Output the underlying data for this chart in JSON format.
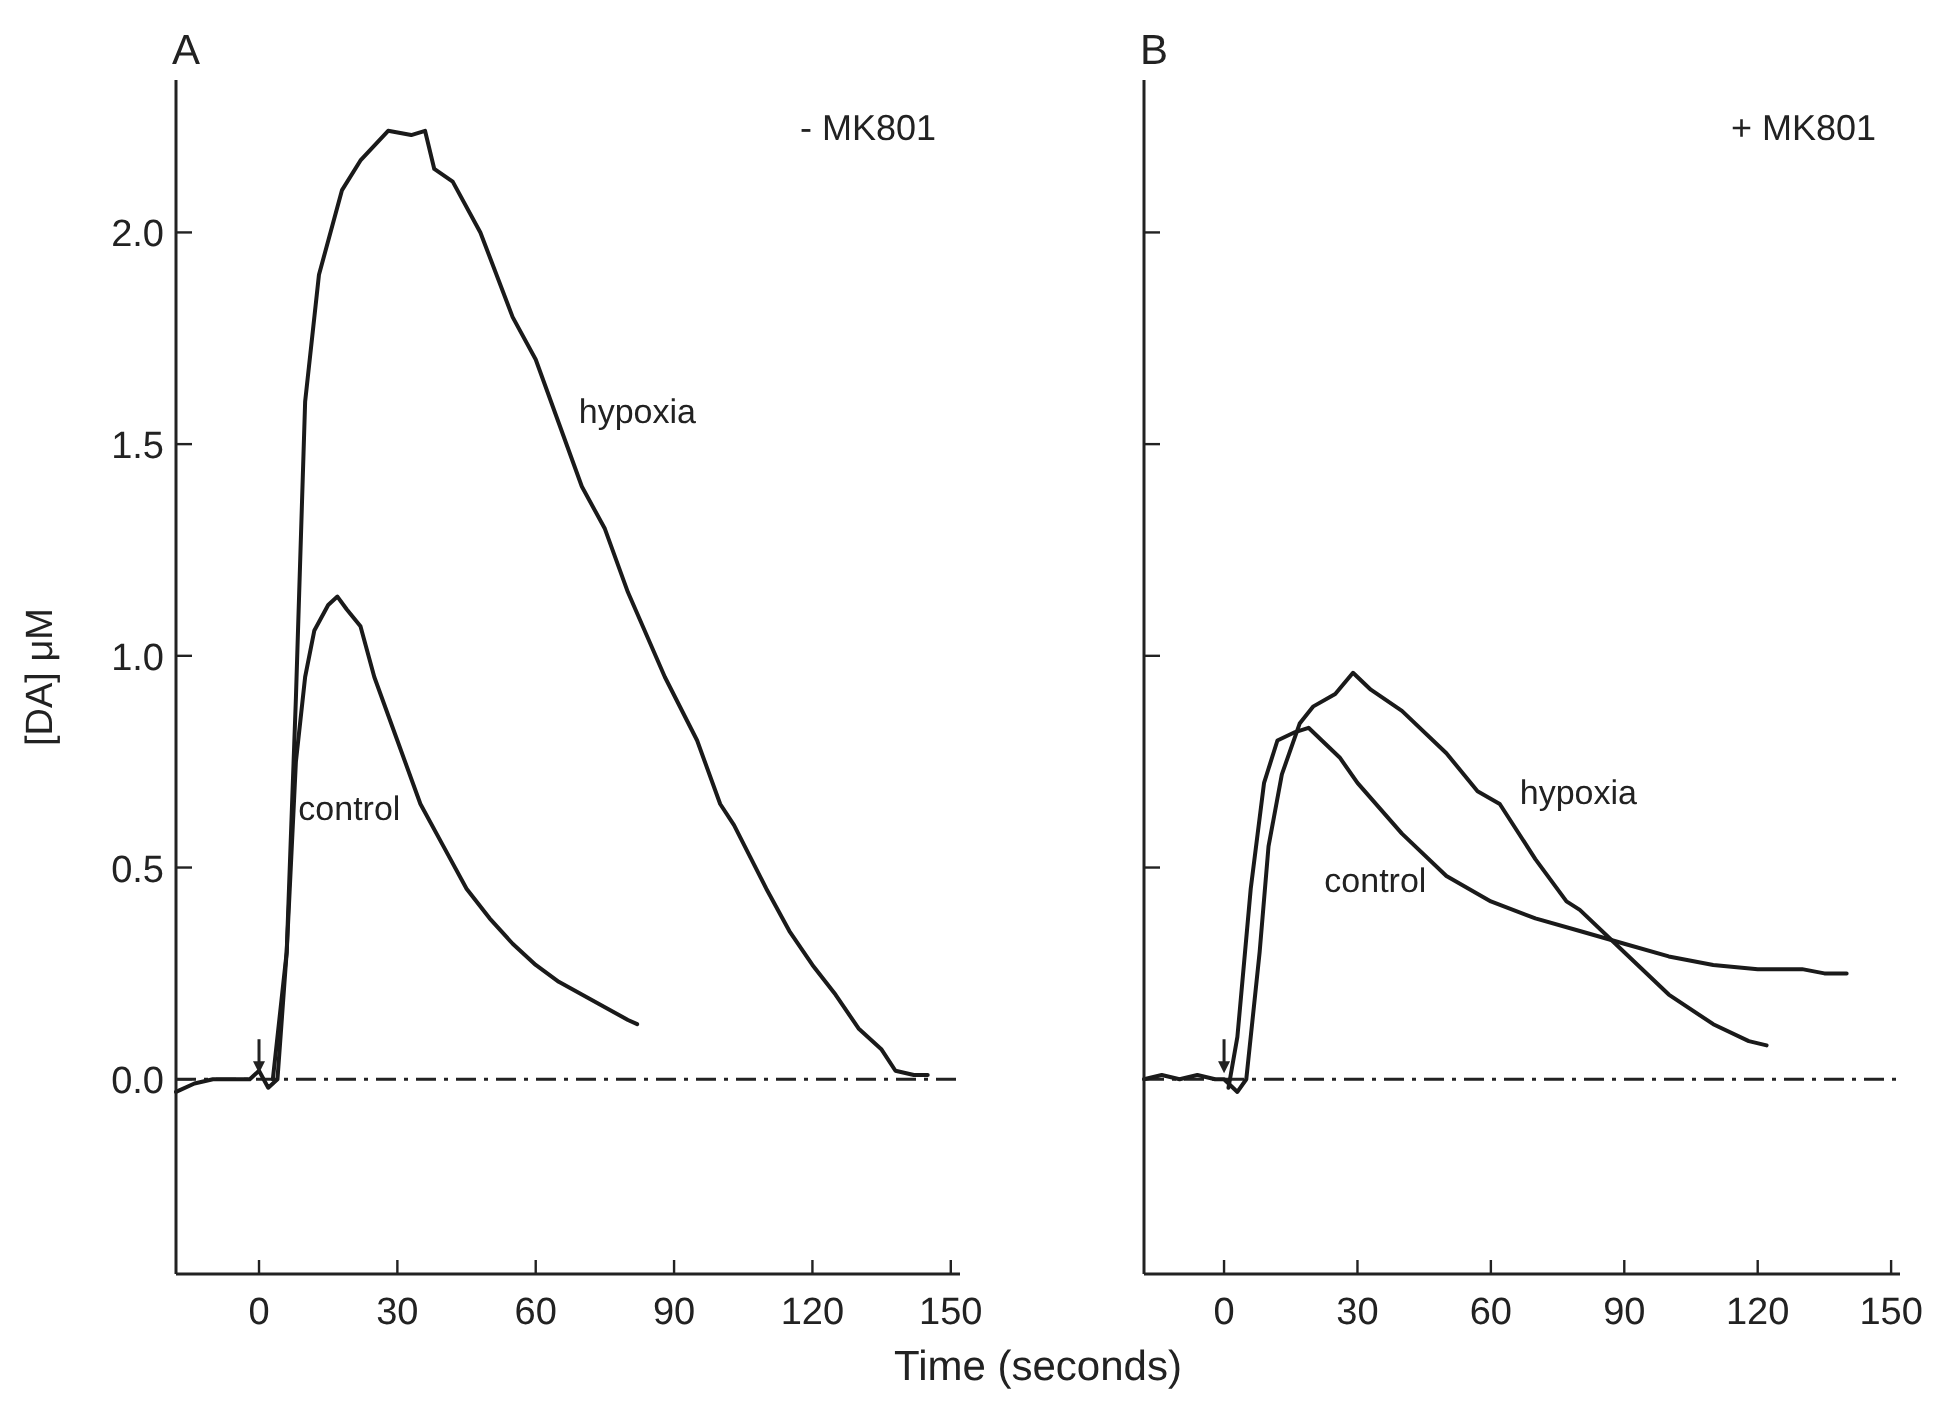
{
  "chart_data": [
    {
      "type": "line",
      "title": "A",
      "xlabel": "Time (seconds)",
      "ylabel": "[DA] μM",
      "annotations": [
        "- MK801"
      ],
      "xlim": [
        -18,
        152
      ],
      "ylim": [
        -0.46,
        2.36
      ],
      "xticks": [
        0,
        30,
        60,
        90,
        120,
        150
      ],
      "yticks": [
        {
          "value": 0,
          "label": "0.0"
        },
        0.5,
        {
          "value": 1,
          "label": "1.0"
        },
        1.5,
        {
          "value": 2,
          "label": "2.0"
        }
      ],
      "line_style": "solid",
      "ref_lines": [
        {
          "axis": "y",
          "value": 0,
          "line_style": "dashdot"
        }
      ],
      "series": [
        {
          "name": "control",
          "color": "#1a1a1a",
          "x": [
            3,
            6,
            8,
            10,
            12,
            15,
            17,
            19,
            22,
            25,
            30,
            35,
            40,
            45,
            50,
            55,
            60,
            65,
            70,
            75,
            80,
            82
          ],
          "values": [
            0,
            0.3,
            0.75,
            0.95,
            1.06,
            1.12,
            1.14,
            1.11,
            1.07,
            0.95,
            0.8,
            0.65,
            0.55,
            0.45,
            0.38,
            0.32,
            0.27,
            0.23,
            0.2,
            0.17,
            0.14,
            0.13
          ]
        },
        {
          "name": "hypoxia",
          "color": "#1a1a1a",
          "x": [
            -18,
            -14,
            -10,
            -6,
            -2,
            0,
            2,
            4,
            6,
            8,
            10,
            13,
            18,
            22,
            28,
            33,
            36,
            38,
            42,
            48,
            55,
            60,
            65,
            70,
            75,
            80,
            88,
            95,
            100,
            103,
            110,
            115,
            120,
            125,
            130,
            135,
            138,
            142,
            145
          ],
          "values": [
            -0.03,
            -0.01,
            0,
            0,
            0,
            0.02,
            -0.02,
            0,
            0.3,
            0.9,
            1.6,
            1.9,
            2.1,
            2.17,
            2.24,
            2.23,
            2.24,
            2.15,
            2.12,
            2,
            1.8,
            1.7,
            1.55,
            1.4,
            1.3,
            1.15,
            0.95,
            0.8,
            0.65,
            0.6,
            0.45,
            0.35,
            0.27,
            0.2,
            0.12,
            0.07,
            0.02,
            0.01,
            0.01
          ]
        }
      ]
    },
    {
      "type": "line",
      "title": "B",
      "annotations": [
        "+ MK801"
      ],
      "xlim": [
        -18,
        152
      ],
      "ylim": [
        -0.46,
        2.36
      ],
      "xticks": [
        0,
        30,
        60,
        90,
        120,
        150
      ],
      "yticks": [
        {
          "value": 0.5,
          "label": null
        },
        {
          "value": 1,
          "label": null
        },
        {
          "value": 1.5,
          "label": null
        },
        {
          "value": 2,
          "label": null
        }
      ],
      "tick_labels": "x",
      "line_style": "solid",
      "ref_lines": [
        {
          "axis": "y",
          "value": 0,
          "line_style": "dashdot"
        }
      ],
      "series": [
        {
          "name": "control",
          "color": "#1a1a1a",
          "x": [
            1,
            3,
            6,
            9,
            12,
            16,
            19,
            22,
            26,
            30,
            40,
            50,
            60,
            70,
            80,
            90,
            100,
            110,
            120,
            130,
            135,
            140
          ],
          "values": [
            -0.02,
            0.1,
            0.45,
            0.7,
            0.8,
            0.82,
            0.83,
            0.8,
            0.76,
            0.7,
            0.58,
            0.48,
            0.42,
            0.38,
            0.35,
            0.32,
            0.29,
            0.27,
            0.26,
            0.26,
            0.25,
            0.25
          ]
        },
        {
          "name": "hypoxia",
          "color": "#1a1a1a",
          "x": [
            -18,
            -14,
            -10,
            -6,
            -2,
            0,
            3,
            5,
            8,
            10,
            13,
            17,
            20,
            25,
            29,
            33,
            40,
            50,
            57,
            62,
            70,
            77,
            80,
            88,
            90,
            100,
            110,
            118,
            122
          ],
          "values": [
            0,
            0.01,
            0,
            0.01,
            0,
            0,
            -0.03,
            0,
            0.3,
            0.55,
            0.72,
            0.84,
            0.88,
            0.91,
            0.96,
            0.92,
            0.87,
            0.77,
            0.68,
            0.65,
            0.52,
            0.42,
            0.4,
            0.32,
            0.3,
            0.2,
            0.13,
            0.09,
            0.08
          ]
        }
      ]
    }
  ]
}
